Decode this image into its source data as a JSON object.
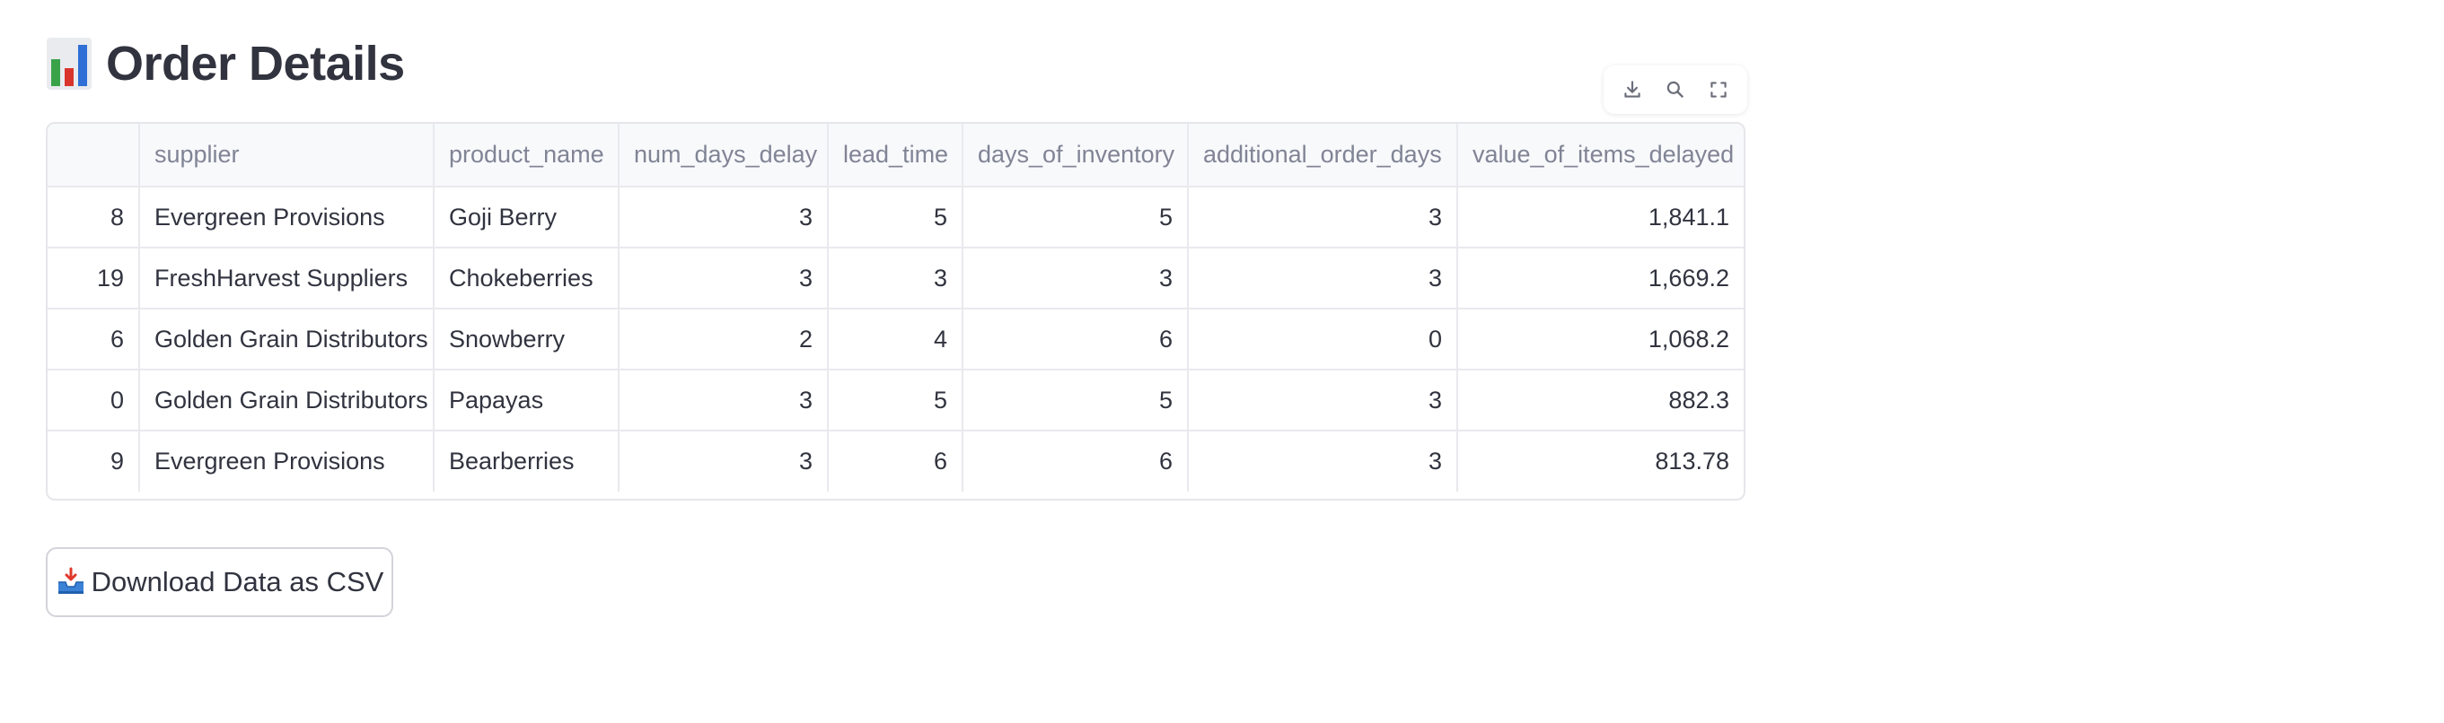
{
  "header": {
    "title": "Order Details",
    "title_icon": "bar-chart-emoji-icon"
  },
  "toolbar": {
    "icons": [
      "download-icon",
      "search-icon",
      "fullscreen-icon"
    ]
  },
  "table": {
    "columns": [
      "",
      "supplier",
      "product_name",
      "num_days_delay",
      "lead_time",
      "days_of_inventory",
      "additional_order_days",
      "value_of_items_delayed"
    ],
    "rows": [
      [
        "8",
        "Evergreen Provisions",
        "Goji Berry",
        "3",
        "5",
        "5",
        "3",
        "1,841.1"
      ],
      [
        "19",
        "FreshHarvest Suppliers",
        "Chokeberries",
        "3",
        "3",
        "3",
        "3",
        "1,669.2"
      ],
      [
        "6",
        "Golden Grain Distributors",
        "Snowberry",
        "2",
        "4",
        "6",
        "0",
        "1,068.2"
      ],
      [
        "0",
        "Golden Grain Distributors",
        "Papayas",
        "3",
        "5",
        "5",
        "3",
        "882.3"
      ],
      [
        "9",
        "Evergreen Provisions",
        "Bearberries",
        "3",
        "6",
        "6",
        "3",
        "813.78"
      ]
    ]
  },
  "download": {
    "label": "Download Data as CSV",
    "icon": "inbox-tray-icon"
  },
  "colors": {
    "text": "#31333f",
    "muted": "#808495",
    "header_bg": "#f8f9fb",
    "border": "#e6e6ea"
  }
}
